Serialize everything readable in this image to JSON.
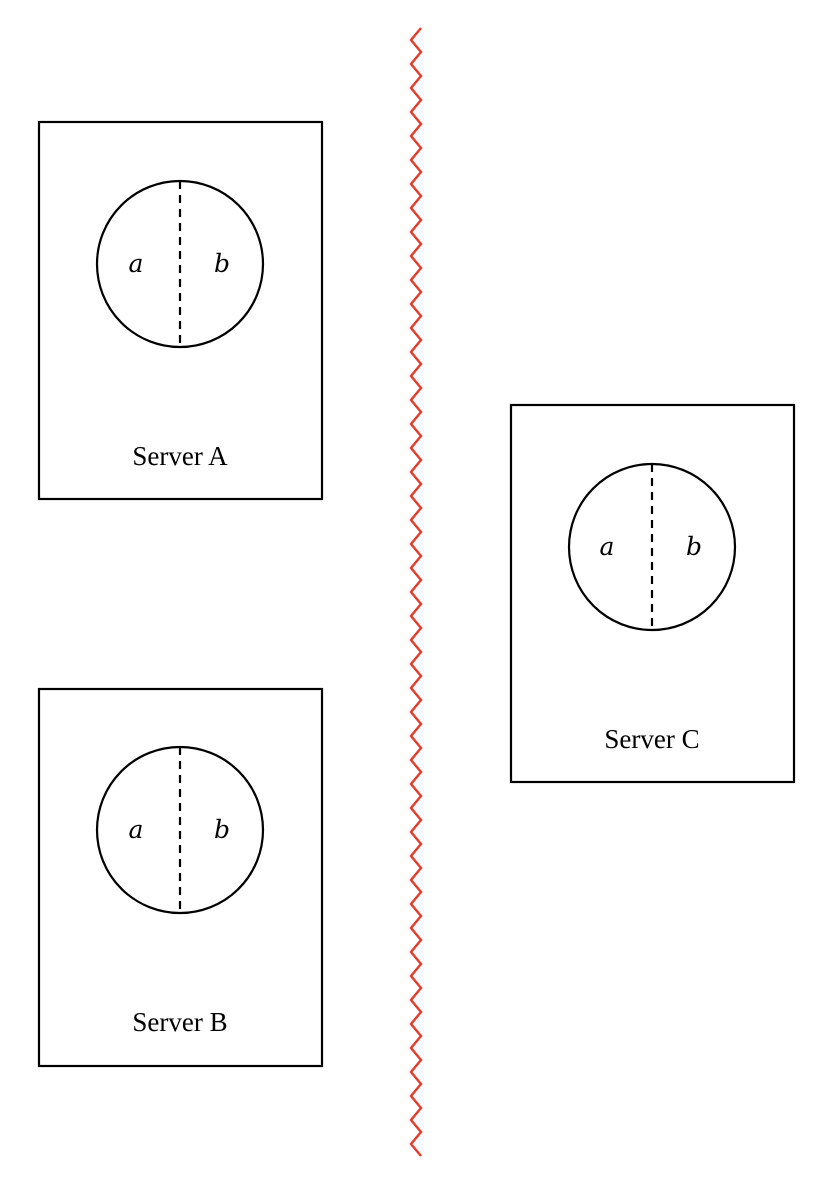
{
  "servers": [
    {
      "id": "A",
      "label": "Server A",
      "parts": [
        "a",
        "b"
      ]
    },
    {
      "id": "B",
      "label": "Server B",
      "parts": [
        "a",
        "b"
      ]
    },
    {
      "id": "C",
      "label": "Server C",
      "parts": [
        "a",
        "b"
      ]
    }
  ],
  "partition": {
    "meaning": "network-partition",
    "color": "#e8392a"
  }
}
